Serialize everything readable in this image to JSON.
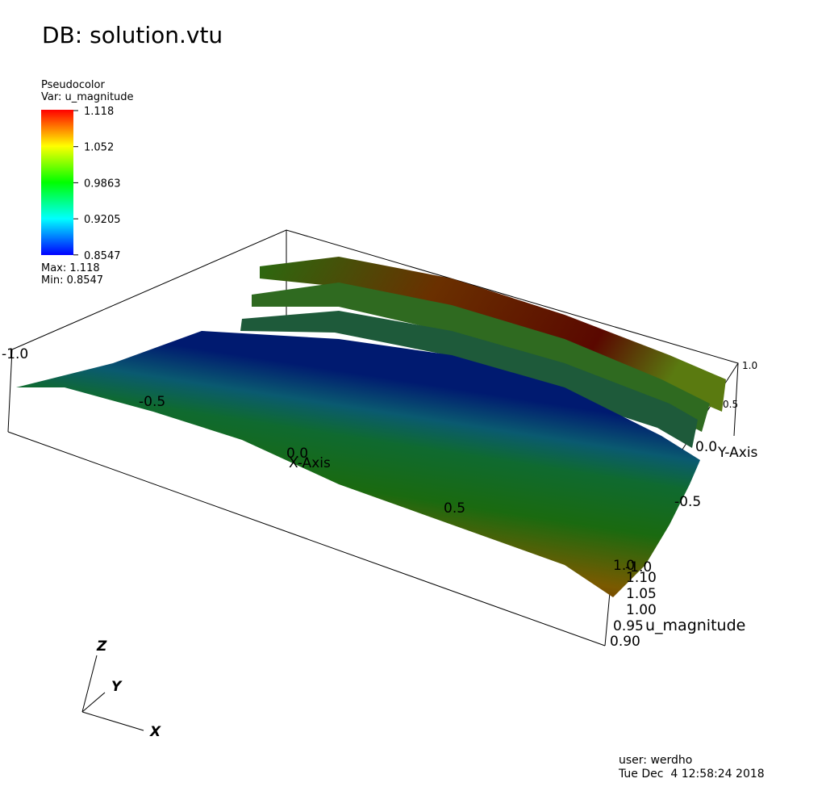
{
  "title": "DB: solution.vtu",
  "legend": {
    "plot": "Pseudocolor",
    "var": "Var: u_magnitude",
    "ticks": [
      "1.118",
      "1.052",
      "0.9863",
      "0.9205",
      "0.8547"
    ],
    "max": "Max:  1.118",
    "min": "Min:  0.8547"
  },
  "axes": {
    "x": {
      "title": "X-Axis",
      "ticks": [
        "-1.0",
        "-0.5",
        "0.0",
        "0.5",
        "1.0"
      ]
    },
    "y": {
      "title": "Y-Axis",
      "ticks": [
        "1.0",
        "0.5",
        "0.0",
        "-0.5",
        "-1.0"
      ]
    },
    "z": {
      "title": "u_magnitude",
      "ticks": [
        "1.10",
        "1.05",
        "1.00",
        "0.95",
        "0.90"
      ]
    }
  },
  "triad": {
    "x": "X",
    "y": "Y",
    "z": "Z"
  },
  "footer": {
    "user": "user: werdho",
    "date": "Tue Dec  4 12:58:24 2018"
  }
}
